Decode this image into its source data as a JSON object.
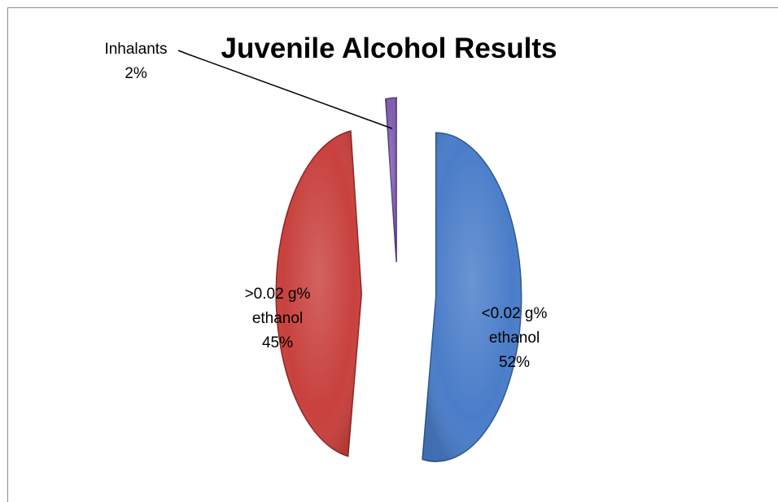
{
  "chart_data": {
    "type": "pie",
    "title": "Juvenile Alcohol Results",
    "slices": [
      {
        "label_lines": [
          "<0.02 g%",
          "ethanol"
        ],
        "percent_label": "52%",
        "value": 52,
        "color": "#4a7dc9",
        "edge": "#2c5794"
      },
      {
        "label_lines": [
          ">0.02 g%",
          "ethanol"
        ],
        "percent_label": "45%",
        "value": 45,
        "color": "#c8413e",
        "edge": "#8e2422"
      },
      {
        "label_lines": [
          "Inhalants"
        ],
        "percent_label": "2%",
        "value": 2,
        "color": "#7f5eb0",
        "edge": "#553a84"
      }
    ],
    "legend": "none",
    "grid": false
  }
}
